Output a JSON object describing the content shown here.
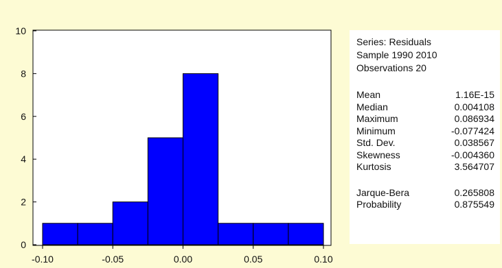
{
  "chart_data": {
    "type": "bar",
    "subtype": "histogram",
    "bin_edges": [
      -0.1,
      -0.075,
      -0.05,
      -0.025,
      0.0,
      0.025,
      0.05,
      0.075,
      0.1
    ],
    "values": [
      1,
      1,
      2,
      5,
      8,
      1,
      1,
      1
    ],
    "xlim": [
      -0.1,
      0.1
    ],
    "ylim": [
      0,
      10
    ],
    "x_ticks": [
      "-0.10",
      "-0.05",
      "0.00",
      "0.05",
      "0.10"
    ],
    "x_tick_values": [
      -0.1,
      -0.05,
      0.0,
      0.05,
      0.1
    ],
    "y_ticks": [
      "0",
      "2",
      "4",
      "6",
      "8",
      "10"
    ],
    "y_tick_values": [
      0,
      2,
      4,
      6,
      8,
      10
    ],
    "grid": false,
    "bar_color": "#0000ff",
    "title": "",
    "xlabel": "",
    "ylabel": ""
  },
  "stats": {
    "series": "Series: Residuals",
    "sample": "Sample 1990 2010",
    "observations": "Observations 20",
    "rows": [
      {
        "label": "Mean",
        "value": "1.16E-15"
      },
      {
        "label": "Median",
        "value": "0.004108"
      },
      {
        "label": "Maximum",
        "value": "0.086934"
      },
      {
        "label": "Minimum",
        "value": "-0.077424"
      },
      {
        "label": "Std. Dev.",
        "value": "0.038567"
      },
      {
        "label": "Skewness",
        "value": "-0.004360"
      },
      {
        "label": "Kurtosis",
        "value": "3.564707"
      }
    ],
    "test_rows": [
      {
        "label": "Jarque-Bera",
        "value": "0.265808"
      },
      {
        "label": "Probability",
        "value": "0.875549"
      }
    ]
  }
}
